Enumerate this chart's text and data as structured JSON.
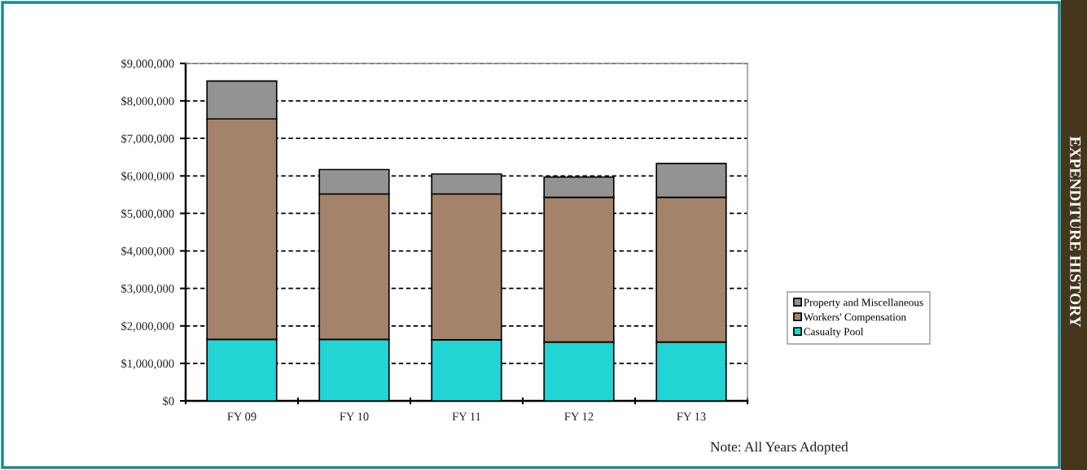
{
  "chart_data": {
    "type": "bar",
    "title": "EXPENDITURE HISTORY",
    "categories": [
      "FY 09",
      "FY 10",
      "FY 11",
      "FY 12",
      "FY 13"
    ],
    "series": [
      {
        "name": "Casualty Pool",
        "color": "#22d4d4",
        "values": [
          1640000,
          1640000,
          1630000,
          1570000,
          1570000
        ]
      },
      {
        "name": "Workers' Compensation",
        "color": "#a5836a",
        "values": [
          5880000,
          3880000,
          3890000,
          3860000,
          3860000
        ]
      },
      {
        "name": "Property and Miscellaneous",
        "color": "#939393",
        "values": [
          1010000,
          650000,
          530000,
          540000,
          900000
        ]
      }
    ],
    "stacked": true,
    "ylim": [
      0,
      9000000
    ],
    "yticks": [
      {
        "value": 0,
        "label": "$0"
      },
      {
        "value": 1000000,
        "label": "$1,000,000"
      },
      {
        "value": 2000000,
        "label": "$2,000,000"
      },
      {
        "value": 3000000,
        "label": "$3,000,000"
      },
      {
        "value": 4000000,
        "label": "$4,000,000"
      },
      {
        "value": 5000000,
        "label": "$5,000,000"
      },
      {
        "value": 6000000,
        "label": "$6,000,000"
      },
      {
        "value": 7000000,
        "label": "$7,000,000"
      },
      {
        "value": 8000000,
        "label": "$8,000,000"
      },
      {
        "value": 9000000,
        "label": "$9,000,000"
      }
    ],
    "grid": "y",
    "legend": "right",
    "annotations": [
      "Note: All Years Adopted"
    ]
  }
}
